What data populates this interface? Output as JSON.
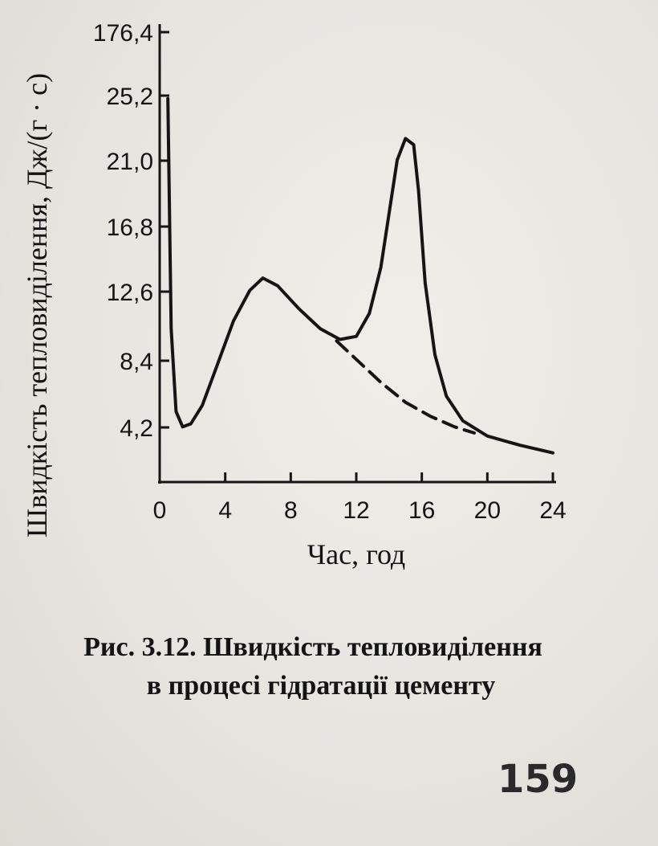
{
  "chart_data": {
    "type": "line",
    "xlabel": "Час, год",
    "ylabel": "Швидкість тепловиділення, Дж/(г · с)",
    "x_ticks": [
      "0",
      "4",
      "8",
      "12",
      "16",
      "20",
      "24"
    ],
    "y_ticks": [
      "4,2",
      "8,4",
      "12,6",
      "16,8",
      "21,0",
      "25,2",
      "176,4"
    ],
    "xlim": [
      0,
      24
    ],
    "grid": false,
    "series": [
      {
        "style": "solid",
        "x": [
          0.5,
          0.7,
          1.0,
          1.4,
          1.9,
          2.6,
          3.5,
          4.5,
          5.5,
          6.3,
          7.2,
          8.5,
          9.8,
          11.0,
          12.0,
          12.8,
          13.5,
          14.0,
          14.5,
          15.0,
          15.5,
          15.8,
          16.2,
          16.8,
          17.5,
          18.5,
          20.0,
          22.0,
          24.0
        ],
        "y": [
          25.0,
          10.0,
          4.6,
          3.6,
          3.8,
          5.0,
          7.6,
          10.5,
          12.5,
          13.3,
          12.8,
          11.3,
          10.0,
          9.3,
          9.5,
          11.0,
          14.0,
          17.5,
          21.0,
          22.4,
          22.0,
          19.0,
          13.0,
          8.3,
          5.6,
          4.0,
          3.0,
          2.4,
          1.9
        ]
      },
      {
        "style": "dashed",
        "x": [
          10.8,
          12.0,
          13.5,
          15.0,
          16.5,
          18.0,
          19.2
        ],
        "y": [
          9.2,
          8.0,
          6.5,
          5.2,
          4.3,
          3.6,
          3.2
        ]
      }
    ]
  },
  "caption": {
    "line1": "Рис. 3.12. Швидкість тепловиділення",
    "line2": "в процесі гідратації цементу"
  },
  "page_number": "159"
}
